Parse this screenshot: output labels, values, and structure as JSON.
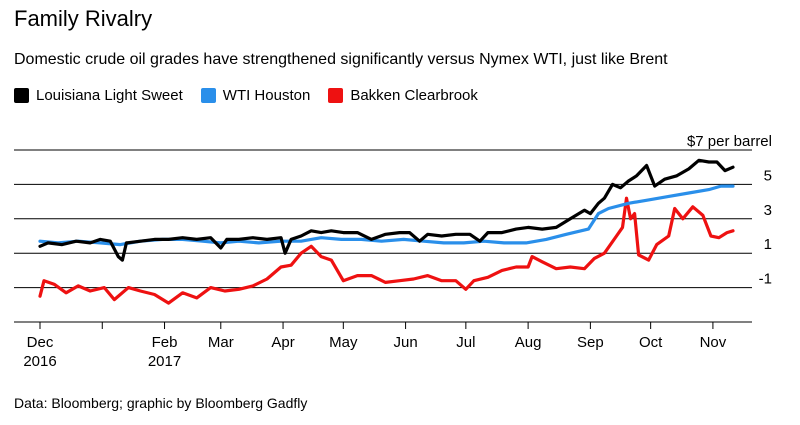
{
  "title": "Family Rivalry",
  "subtitle": "Domestic crude oil grades have strengthened significantly versus Nymex WTI, just like Brent",
  "source": "Data: Bloomberg; graphic by Bloomberg Gadfly",
  "colors": {
    "Louisiana Light Sweet": "#000000",
    "WTI Houston": "#2a8fea",
    "Bakken Clearbrook": "#ee1111",
    "grid": "#000000"
  },
  "chart_data": {
    "type": "line",
    "title": "Family Rivalry",
    "ylabel": "",
    "ylim": [
      -3,
      8
    ],
    "y_ticks": [
      {
        "value": 7,
        "label": "$7 per barrel"
      },
      {
        "value": 5,
        "label": "5"
      },
      {
        "value": 3,
        "label": "3"
      },
      {
        "value": 1,
        "label": "1"
      },
      {
        "value": -1,
        "label": "-1"
      }
    ],
    "x_ticks": [
      {
        "date": "2016-12-01",
        "label": "Dec",
        "sublabel": "2016"
      },
      {
        "date": "2017-01-01",
        "label": "",
        "sublabel": ""
      },
      {
        "date": "2017-02-01",
        "label": "Feb",
        "sublabel": "2017"
      },
      {
        "date": "2017-03-01",
        "label": "Mar",
        "sublabel": ""
      },
      {
        "date": "2017-04-01",
        "label": "Apr",
        "sublabel": ""
      },
      {
        "date": "2017-05-01",
        "label": "May",
        "sublabel": ""
      },
      {
        "date": "2017-06-01",
        "label": "Jun",
        "sublabel": ""
      },
      {
        "date": "2017-07-01",
        "label": "Jul",
        "sublabel": ""
      },
      {
        "date": "2017-08-01",
        "label": "Aug",
        "sublabel": ""
      },
      {
        "date": "2017-09-01",
        "label": "Sep",
        "sublabel": ""
      },
      {
        "date": "2017-10-01",
        "label": "Oct",
        "sublabel": ""
      },
      {
        "date": "2017-11-01",
        "label": "Nov",
        "sublabel": ""
      }
    ],
    "legend_position": "top-left",
    "series": [
      {
        "name": "Louisiana Light Sweet",
        "points": [
          [
            "2016-12-01",
            1.4
          ],
          [
            "2016-12-05",
            1.6
          ],
          [
            "2016-12-12",
            1.5
          ],
          [
            "2016-12-19",
            1.7
          ],
          [
            "2016-12-26",
            1.6
          ],
          [
            "2016-12-31",
            1.8
          ],
          [
            "2017-01-05",
            1.7
          ],
          [
            "2017-01-09",
            0.8
          ],
          [
            "2017-01-11",
            0.6
          ],
          [
            "2017-01-13",
            1.6
          ],
          [
            "2017-01-20",
            1.7
          ],
          [
            "2017-01-27",
            1.8
          ],
          [
            "2017-02-03",
            1.8
          ],
          [
            "2017-02-10",
            1.9
          ],
          [
            "2017-02-17",
            1.8
          ],
          [
            "2017-02-24",
            1.9
          ],
          [
            "2017-03-01",
            1.3
          ],
          [
            "2017-03-04",
            1.8
          ],
          [
            "2017-03-10",
            1.8
          ],
          [
            "2017-03-17",
            1.9
          ],
          [
            "2017-03-24",
            1.8
          ],
          [
            "2017-03-31",
            1.9
          ],
          [
            "2017-04-02",
            1.0
          ],
          [
            "2017-04-05",
            1.8
          ],
          [
            "2017-04-10",
            2.0
          ],
          [
            "2017-04-15",
            2.3
          ],
          [
            "2017-04-20",
            2.2
          ],
          [
            "2017-04-25",
            2.3
          ],
          [
            "2017-05-01",
            2.2
          ],
          [
            "2017-05-08",
            2.2
          ],
          [
            "2017-05-15",
            1.8
          ],
          [
            "2017-05-22",
            2.1
          ],
          [
            "2017-05-29",
            2.2
          ],
          [
            "2017-06-03",
            2.2
          ],
          [
            "2017-06-08",
            1.7
          ],
          [
            "2017-06-12",
            2.1
          ],
          [
            "2017-06-19",
            2.0
          ],
          [
            "2017-06-26",
            2.1
          ],
          [
            "2017-07-03",
            2.1
          ],
          [
            "2017-07-08",
            1.7
          ],
          [
            "2017-07-12",
            2.2
          ],
          [
            "2017-07-19",
            2.2
          ],
          [
            "2017-07-26",
            2.4
          ],
          [
            "2017-08-01",
            2.5
          ],
          [
            "2017-08-08",
            2.4
          ],
          [
            "2017-08-15",
            2.5
          ],
          [
            "2017-08-22",
            3.0
          ],
          [
            "2017-08-29",
            3.5
          ],
          [
            "2017-09-01",
            3.3
          ],
          [
            "2017-09-05",
            3.9
          ],
          [
            "2017-09-08",
            4.2
          ],
          [
            "2017-09-12",
            5.0
          ],
          [
            "2017-09-16",
            4.8
          ],
          [
            "2017-09-20",
            5.2
          ],
          [
            "2017-09-24",
            5.5
          ],
          [
            "2017-09-29",
            6.1
          ],
          [
            "2017-10-03",
            4.9
          ],
          [
            "2017-10-08",
            5.3
          ],
          [
            "2017-10-14",
            5.5
          ],
          [
            "2017-10-20",
            5.9
          ],
          [
            "2017-10-25",
            6.4
          ],
          [
            "2017-10-30",
            6.3
          ],
          [
            "2017-11-03",
            6.3
          ],
          [
            "2017-11-07",
            5.8
          ],
          [
            "2017-11-11",
            6.0
          ]
        ]
      },
      {
        "name": "WTI Houston",
        "points": [
          [
            "2016-12-01",
            1.7
          ],
          [
            "2016-12-10",
            1.6
          ],
          [
            "2016-12-20",
            1.7
          ],
          [
            "2016-12-31",
            1.6
          ],
          [
            "2017-01-10",
            1.5
          ],
          [
            "2017-01-20",
            1.7
          ],
          [
            "2017-01-31",
            1.8
          ],
          [
            "2017-02-10",
            1.8
          ],
          [
            "2017-02-20",
            1.7
          ],
          [
            "2017-03-01",
            1.6
          ],
          [
            "2017-03-10",
            1.7
          ],
          [
            "2017-03-20",
            1.6
          ],
          [
            "2017-03-31",
            1.7
          ],
          [
            "2017-04-10",
            1.7
          ],
          [
            "2017-04-20",
            1.9
          ],
          [
            "2017-04-30",
            1.8
          ],
          [
            "2017-05-10",
            1.8
          ],
          [
            "2017-05-20",
            1.7
          ],
          [
            "2017-05-31",
            1.8
          ],
          [
            "2017-06-10",
            1.7
          ],
          [
            "2017-06-20",
            1.6
          ],
          [
            "2017-06-30",
            1.6
          ],
          [
            "2017-07-10",
            1.7
          ],
          [
            "2017-07-20",
            1.6
          ],
          [
            "2017-07-31",
            1.6
          ],
          [
            "2017-08-10",
            1.8
          ],
          [
            "2017-08-20",
            2.1
          ],
          [
            "2017-08-31",
            2.4
          ],
          [
            "2017-09-05",
            3.3
          ],
          [
            "2017-09-10",
            3.6
          ],
          [
            "2017-09-20",
            3.9
          ],
          [
            "2017-09-30",
            4.1
          ],
          [
            "2017-10-10",
            4.3
          ],
          [
            "2017-10-20",
            4.5
          ],
          [
            "2017-10-30",
            4.7
          ],
          [
            "2017-11-05",
            4.9
          ],
          [
            "2017-11-11",
            4.9
          ]
        ]
      },
      {
        "name": "Bakken Clearbrook",
        "points": [
          [
            "2016-12-01",
            -1.5
          ],
          [
            "2016-12-03",
            -0.6
          ],
          [
            "2016-12-08",
            -0.8
          ],
          [
            "2016-12-14",
            -1.3
          ],
          [
            "2016-12-20",
            -0.9
          ],
          [
            "2016-12-26",
            -1.2
          ],
          [
            "2017-01-02",
            -1.0
          ],
          [
            "2017-01-07",
            -1.7
          ],
          [
            "2017-01-14",
            -1.0
          ],
          [
            "2017-01-20",
            -1.2
          ],
          [
            "2017-01-27",
            -1.4
          ],
          [
            "2017-02-03",
            -1.9
          ],
          [
            "2017-02-10",
            -1.3
          ],
          [
            "2017-02-17",
            -1.6
          ],
          [
            "2017-02-24",
            -1.0
          ],
          [
            "2017-03-03",
            -1.2
          ],
          [
            "2017-03-10",
            -1.1
          ],
          [
            "2017-03-17",
            -0.9
          ],
          [
            "2017-03-24",
            -0.5
          ],
          [
            "2017-03-31",
            0.2
          ],
          [
            "2017-04-05",
            0.3
          ],
          [
            "2017-04-10",
            1.0
          ],
          [
            "2017-04-15",
            1.4
          ],
          [
            "2017-04-20",
            0.8
          ],
          [
            "2017-04-25",
            0.6
          ],
          [
            "2017-05-01",
            -0.6
          ],
          [
            "2017-05-08",
            -0.3
          ],
          [
            "2017-05-15",
            -0.3
          ],
          [
            "2017-05-22",
            -0.7
          ],
          [
            "2017-05-29",
            -0.6
          ],
          [
            "2017-06-05",
            -0.5
          ],
          [
            "2017-06-12",
            -0.3
          ],
          [
            "2017-06-19",
            -0.6
          ],
          [
            "2017-06-26",
            -0.6
          ],
          [
            "2017-07-01",
            -1.1
          ],
          [
            "2017-07-05",
            -0.6
          ],
          [
            "2017-07-12",
            -0.4
          ],
          [
            "2017-07-19",
            0.0
          ],
          [
            "2017-07-26",
            0.2
          ],
          [
            "2017-08-01",
            0.2
          ],
          [
            "2017-08-03",
            0.8
          ],
          [
            "2017-08-08",
            0.5
          ],
          [
            "2017-08-15",
            0.1
          ],
          [
            "2017-08-22",
            0.2
          ],
          [
            "2017-08-29",
            0.1
          ],
          [
            "2017-09-03",
            0.7
          ],
          [
            "2017-09-08",
            1.0
          ],
          [
            "2017-09-14",
            2.0
          ],
          [
            "2017-09-17",
            2.5
          ],
          [
            "2017-09-19",
            4.2
          ],
          [
            "2017-09-21",
            3.0
          ],
          [
            "2017-09-23",
            3.3
          ],
          [
            "2017-09-25",
            0.9
          ],
          [
            "2017-09-30",
            0.6
          ],
          [
            "2017-10-04",
            1.5
          ],
          [
            "2017-10-10",
            2.0
          ],
          [
            "2017-10-13",
            3.6
          ],
          [
            "2017-10-17",
            3.0
          ],
          [
            "2017-10-22",
            3.7
          ],
          [
            "2017-10-27",
            3.2
          ],
          [
            "2017-10-31",
            2.0
          ],
          [
            "2017-11-04",
            1.9
          ],
          [
            "2017-11-08",
            2.2
          ],
          [
            "2017-11-11",
            2.3
          ]
        ]
      }
    ]
  }
}
